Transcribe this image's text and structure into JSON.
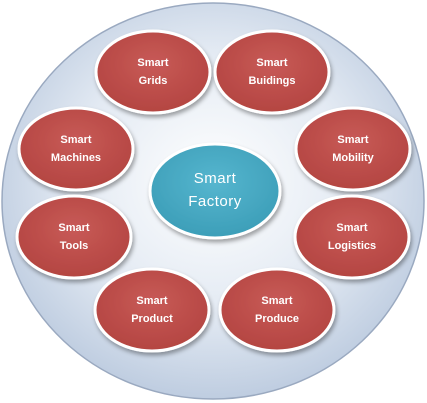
{
  "center": {
    "line1": "Smart",
    "line2": "Factory"
  },
  "nodes": [
    {
      "line1": "Smart",
      "line2": "Grids"
    },
    {
      "line1": "Smart",
      "line2": "Buidings"
    },
    {
      "line1": "Smart",
      "line2": "Machines"
    },
    {
      "line1": "Smart",
      "line2": "Mobility"
    },
    {
      "line1": "Smart",
      "line2": "Tools"
    },
    {
      "line1": "Smart",
      "line2": "Logistics"
    },
    {
      "line1": "Smart",
      "line2": "Product"
    },
    {
      "line1": "Smart",
      "line2": "Produce"
    }
  ],
  "colors": {
    "disc_fill": "#c9d6e8",
    "disc_stroke": "#9aa9c0",
    "node_fill": "#c0504d",
    "node_stroke": "#ffffff",
    "center_fill": "#4bacc6",
    "center_stroke": "#ffffff"
  }
}
